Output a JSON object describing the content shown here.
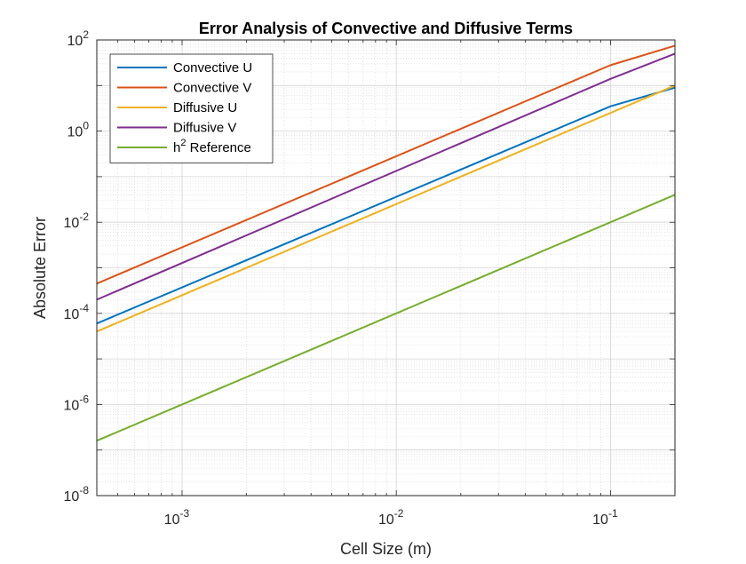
{
  "chart_data": {
    "type": "line",
    "title": "Error Analysis of Convective and Diffusive Terms",
    "xlabel": "Cell Size (m)",
    "ylabel": "Absolute Error",
    "xscale": "log",
    "yscale": "log",
    "xlim": [
      0.0004,
      0.2
    ],
    "ylim": [
      1e-08,
      100
    ],
    "grid": true,
    "minor_grid": true,
    "legend_position": "top-left",
    "x_ticks": [
      {
        "value": 0.001,
        "base": "10",
        "exp": "-3"
      },
      {
        "value": 0.01,
        "base": "10",
        "exp": "-2"
      },
      {
        "value": 0.1,
        "base": "10",
        "exp": "-1"
      }
    ],
    "y_ticks": [
      {
        "value": 1e-08,
        "base": "10",
        "exp": "-8"
      },
      {
        "value": 1e-06,
        "base": "10",
        "exp": "-6"
      },
      {
        "value": 0.0001,
        "base": "10",
        "exp": "-4"
      },
      {
        "value": 0.01,
        "base": "10",
        "exp": "-2"
      },
      {
        "value": 1,
        "base": "10",
        "exp": "0"
      },
      {
        "value": 100,
        "base": "10",
        "exp": "2"
      }
    ],
    "series": [
      {
        "name": "Convective U",
        "color": "#0072BD",
        "x": [
          0.0004,
          0.1,
          0.2
        ],
        "y": [
          6e-05,
          3.5,
          9
        ]
      },
      {
        "name": "Convective V",
        "color": "#D95319",
        "x": [
          0.0004,
          0.1,
          0.2
        ],
        "y": [
          0.00045,
          28,
          75
        ]
      },
      {
        "name": "Diffusive U",
        "color": "#EDB120",
        "x": [
          0.0004,
          0.2
        ],
        "y": [
          4e-05,
          10
        ]
      },
      {
        "name": "Diffusive V",
        "color": "#7E2F8E",
        "x": [
          0.0004,
          0.1,
          0.2
        ],
        "y": [
          0.0002,
          14,
          50
        ]
      },
      {
        "name": "h",
        "name_superscript": "2",
        "name_suffix": " Reference",
        "color": "#77AC30",
        "x": [
          0.0004,
          0.2
        ],
        "y": [
          1.6e-07,
          0.04
        ]
      }
    ]
  }
}
